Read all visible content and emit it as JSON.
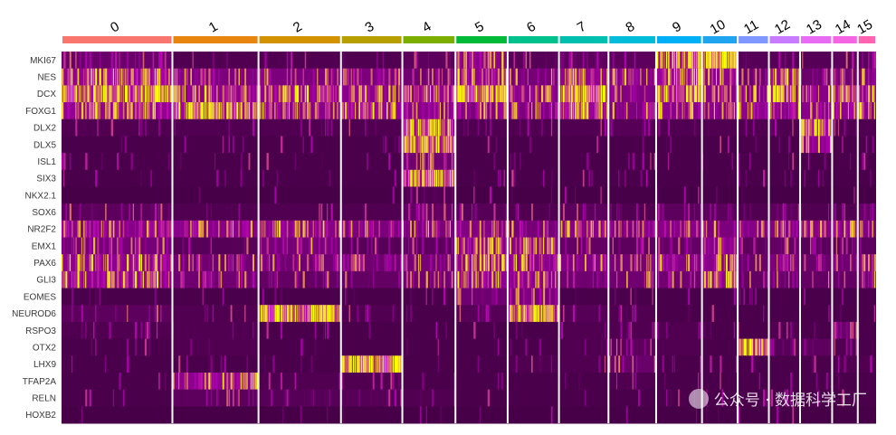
{
  "chart_data": {
    "type": "heatmap",
    "title": "",
    "xlabel": "",
    "ylabel": "",
    "genes": [
      "MKI67",
      "NES",
      "DCX",
      "FOXG1",
      "DLX2",
      "DLX5",
      "ISL1",
      "SIX3",
      "NKX2.1",
      "SOX6",
      "NR2F2",
      "EMX1",
      "PAX6",
      "GLI3",
      "EOMES",
      "NEUROD6",
      "RSPO3",
      "OTX2",
      "LHX9",
      "TFAP2A",
      "RELN",
      "HOXB2"
    ],
    "clusters": [
      {
        "label": "0",
        "color": "#F8766D",
        "width_fraction": 0.1344
      },
      {
        "label": "1",
        "color": "#E8850E",
        "width_fraction": 0.1044
      },
      {
        "label": "2",
        "color": "#D39200",
        "width_fraction": 0.1
      },
      {
        "label": "3",
        "color": "#B79F00",
        "width_fraction": 0.0744
      },
      {
        "label": "4",
        "color": "#7CAE00",
        "width_fraction": 0.0644
      },
      {
        "label": "5",
        "color": "#00BA38",
        "width_fraction": 0.0633
      },
      {
        "label": "6",
        "color": "#00C08B",
        "width_fraction": 0.0622
      },
      {
        "label": "7",
        "color": "#00BFAF",
        "width_fraction": 0.06
      },
      {
        "label": "8",
        "color": "#00BCD8",
        "width_fraction": 0.0578
      },
      {
        "label": "9",
        "color": "#00B0F6",
        "width_fraction": 0.0556
      },
      {
        "label": "10",
        "color": "#1FA5F0",
        "width_fraction": 0.0433
      },
      {
        "label": "11",
        "color": "#7E98FF",
        "width_fraction": 0.0378
      },
      {
        "label": "12",
        "color": "#C77CFF",
        "width_fraction": 0.0378
      },
      {
        "label": "13",
        "color": "#E76BF3",
        "width_fraction": 0.0389
      },
      {
        "label": "14",
        "color": "#F564E3",
        "width_fraction": 0.0311
      },
      {
        "label": "15",
        "color": "#FF64B0",
        "width_fraction": 0.0222
      }
    ],
    "expression_level": [
      [
        0.3,
        0.1,
        0.1,
        0.1,
        0.2,
        0.55,
        0.15,
        0.2,
        0.2,
        0.75,
        1.0,
        0.15,
        0.15,
        0.15,
        0.2,
        0.2
      ],
      [
        0.65,
        0.45,
        0.45,
        0.45,
        0.35,
        0.6,
        0.4,
        0.65,
        0.5,
        0.7,
        0.6,
        0.3,
        0.65,
        0.3,
        0.35,
        0.45
      ],
      [
        0.85,
        0.6,
        0.65,
        0.55,
        0.65,
        0.85,
        0.55,
        0.9,
        0.5,
        0.8,
        0.55,
        0.5,
        0.75,
        0.55,
        0.8,
        0.6
      ],
      [
        0.65,
        0.75,
        0.55,
        0.65,
        0.55,
        0.45,
        0.45,
        0.7,
        0.45,
        0.55,
        0.5,
        0.6,
        0.55,
        0.55,
        0.6,
        0.55
      ],
      [
        0.1,
        0.1,
        0.1,
        0.1,
        0.75,
        0.1,
        0.1,
        0.1,
        0.15,
        0.1,
        0.1,
        0.1,
        0.1,
        0.8,
        0.1,
        0.1
      ],
      [
        0.05,
        0.05,
        0.05,
        0.05,
        0.8,
        0.05,
        0.05,
        0.05,
        0.05,
        0.05,
        0.05,
        0.05,
        0.05,
        0.6,
        0.05,
        0.05
      ],
      [
        0.05,
        0.05,
        0.05,
        0.05,
        0.35,
        0.05,
        0.05,
        0.05,
        0.05,
        0.05,
        0.05,
        0.05,
        0.05,
        0.05,
        0.05,
        0.05
      ],
      [
        0.05,
        0.05,
        0.05,
        0.05,
        0.85,
        0.05,
        0.05,
        0.05,
        0.05,
        0.05,
        0.05,
        0.05,
        0.05,
        0.05,
        0.05,
        0.05
      ],
      [
        0.02,
        0.02,
        0.02,
        0.02,
        0.1,
        0.02,
        0.02,
        0.02,
        0.02,
        0.02,
        0.02,
        0.02,
        0.02,
        0.02,
        0.02,
        0.02
      ],
      [
        0.2,
        0.1,
        0.1,
        0.1,
        0.25,
        0.15,
        0.1,
        0.2,
        0.1,
        0.2,
        0.2,
        0.1,
        0.2,
        0.1,
        0.1,
        0.25
      ],
      [
        0.55,
        0.55,
        0.55,
        0.45,
        0.45,
        0.5,
        0.4,
        0.55,
        0.45,
        0.55,
        0.45,
        0.5,
        0.5,
        0.55,
        0.5,
        0.5
      ],
      [
        0.4,
        0.15,
        0.4,
        0.15,
        0.2,
        0.55,
        0.6,
        0.25,
        0.2,
        0.25,
        0.55,
        0.2,
        0.25,
        0.15,
        0.2,
        0.2
      ],
      [
        0.6,
        0.35,
        0.35,
        0.35,
        0.4,
        0.65,
        0.55,
        0.5,
        0.4,
        0.5,
        0.55,
        0.3,
        0.45,
        0.3,
        0.35,
        0.5
      ],
      [
        0.6,
        0.35,
        0.25,
        0.25,
        0.35,
        0.6,
        0.55,
        0.35,
        0.35,
        0.35,
        0.6,
        0.25,
        0.3,
        0.25,
        0.25,
        0.4
      ],
      [
        0.05,
        0.05,
        0.05,
        0.05,
        0.05,
        0.35,
        0.45,
        0.05,
        0.05,
        0.05,
        0.05,
        0.05,
        0.05,
        0.05,
        0.05,
        0.05
      ],
      [
        0.2,
        0.1,
        0.85,
        0.1,
        0.05,
        0.15,
        0.85,
        0.15,
        0.1,
        0.05,
        0.05,
        0.05,
        0.05,
        0.05,
        0.05,
        0.05
      ],
      [
        0.1,
        0.1,
        0.05,
        0.05,
        0.05,
        0.05,
        0.05,
        0.1,
        0.1,
        0.1,
        0.05,
        0.05,
        0.1,
        0.05,
        0.3,
        0.05
      ],
      [
        0.05,
        0.1,
        0.05,
        0.05,
        0.05,
        0.05,
        0.05,
        0.1,
        0.2,
        0.1,
        0.05,
        0.85,
        0.15,
        0.2,
        0.1,
        0.05
      ],
      [
        0.05,
        0.05,
        0.05,
        0.9,
        0.05,
        0.05,
        0.1,
        0.1,
        0.3,
        0.05,
        0.05,
        0.05,
        0.05,
        0.05,
        0.1,
        0.1
      ],
      [
        0.05,
        0.6,
        0.1,
        0.1,
        0.05,
        0.05,
        0.05,
        0.05,
        0.1,
        0.05,
        0.05,
        0.05,
        0.05,
        0.05,
        0.05,
        0.05
      ],
      [
        0.05,
        0.2,
        0.15,
        0.15,
        0.1,
        0.05,
        0.05,
        0.05,
        0.05,
        0.05,
        0.05,
        0.05,
        0.05,
        0.05,
        0.05,
        0.05
      ],
      [
        0.02,
        0.02,
        0.02,
        0.02,
        0.02,
        0.02,
        0.02,
        0.02,
        0.02,
        0.02,
        0.02,
        0.02,
        0.02,
        0.02,
        0.02,
        0.02
      ]
    ],
    "colormap": {
      "low": "#450045",
      "mid": "#B400B4",
      "high": "#FFFF00"
    },
    "legend": "none",
    "grid": false
  },
  "watermark": {
    "text": "公众号 · 数据科学工厂"
  }
}
